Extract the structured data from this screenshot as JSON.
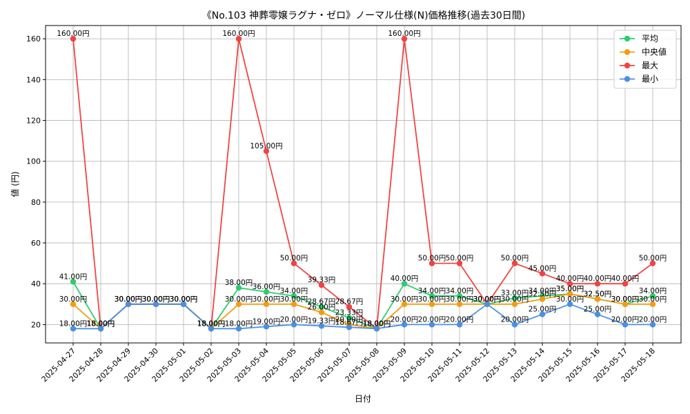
{
  "chart_data": {
    "type": "line",
    "title": "《No.103 神葬零嬢ラグナ・ゼロ》ノーマル仕様(N)価格推移(過去30日間)",
    "xlabel": "日付",
    "ylabel": "値 (円)",
    "ylim": [
      11,
      166.5
    ],
    "yticks": [
      20,
      40,
      60,
      80,
      100,
      120,
      140,
      160
    ],
    "grid": true,
    "legend_position": "top-right",
    "value_suffix": "円",
    "categories": [
      "2025-04-27",
      "2025-04-28",
      "2025-04-29",
      "2025-04-30",
      "2025-05-01",
      "2025-05-02",
      "2025-05-03",
      "2025-05-04",
      "2025-05-05",
      "2025-05-06",
      "2025-05-07",
      "2025-05-08",
      "2025-05-09",
      "2025-05-10",
      "2025-05-11",
      "2025-05-12",
      "2025-05-13",
      "2025-05-14",
      "2025-05-15",
      "2025-05-16",
      "2025-05-17",
      "2025-05-18"
    ],
    "series": [
      {
        "name": "平均",
        "color": "#2ecc71",
        "values": [
          41.0,
          18.0,
          30.0,
          30.0,
          30.0,
          18.0,
          38.0,
          36.0,
          34.0,
          28.67,
          23.33,
          18.0,
          40.0,
          34.0,
          34.0,
          30.0,
          33.0,
          34.0,
          35.0,
          32.5,
          30.0,
          34.0
        ]
      },
      {
        "name": "中央値",
        "color": "#f39c12",
        "values": [
          30.0,
          18.0,
          30.0,
          30.0,
          30.0,
          18.0,
          30.0,
          30.0,
          30.0,
          26.0,
          20.0,
          18.0,
          30.0,
          30.0,
          30.0,
          30.0,
          30.0,
          32.5,
          35.0,
          32.5,
          30.0,
          30.0
        ]
      },
      {
        "name": "最大",
        "color": "#ef4444",
        "values": [
          160.0,
          18.0,
          30.0,
          30.0,
          30.0,
          18.0,
          160.0,
          105.0,
          50.0,
          39.33,
          28.67,
          18.0,
          160.0,
          50.0,
          50.0,
          30.0,
          50.0,
          45.0,
          40.0,
          40.0,
          40.0,
          50.0
        ]
      },
      {
        "name": "最小",
        "color": "#4a90e2",
        "values": [
          18.0,
          18.0,
          30.0,
          30.0,
          30.0,
          18.0,
          18.0,
          19.0,
          20.0,
          19.33,
          18.67,
          18.0,
          20.0,
          20.0,
          20.0,
          30.0,
          20.0,
          25.0,
          30.0,
          25.0,
          20.0,
          20.0
        ]
      }
    ]
  }
}
